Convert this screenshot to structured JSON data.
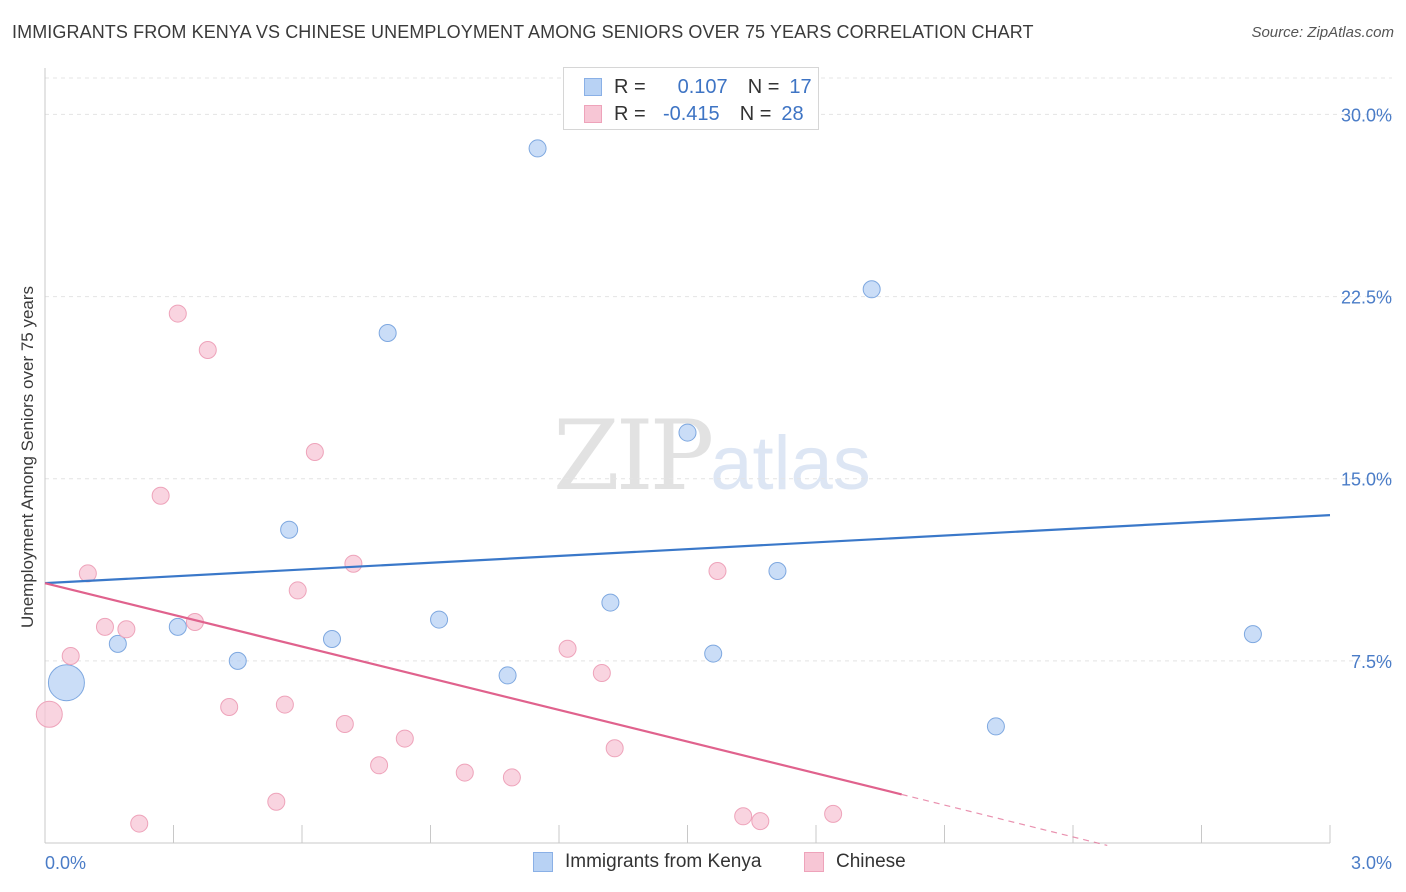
{
  "title": "IMMIGRANTS FROM KENYA VS CHINESE UNEMPLOYMENT AMONG SENIORS OVER 75 YEARS CORRELATION CHART",
  "source": "Source: ZipAtlas.com",
  "watermark": {
    "zip": "ZIP",
    "atlas": "atlas"
  },
  "legend": {
    "rows": [
      {
        "r_label": "R =",
        "r_value": "0.107",
        "n_label": "N =",
        "n_value": "17",
        "color": "#b8d2f4",
        "border": "#8ab0e6"
      },
      {
        "r_label": "R =",
        "r_value": "-0.415",
        "n_label": "N =",
        "n_value": "28",
        "color": "#f7c6d5",
        "border": "#eea3ba"
      }
    ]
  },
  "bottom_legend": [
    {
      "label": "Immigrants from Kenya",
      "color": "#b8d2f4",
      "border": "#8ab0e6"
    },
    {
      "label": "Chinese",
      "color": "#f7c6d5",
      "border": "#eea3ba"
    }
  ],
  "chart_data": {
    "type": "scatter",
    "title": "IMMIGRANTS FROM KENYA VS CHINESE UNEMPLOYMENT AMONG SENIORS OVER 75 YEARS CORRELATION CHART",
    "xlabel": "",
    "ylabel": "Unemployment Among Seniors over 75 years",
    "xlim": [
      0,
      3.0
    ],
    "ylim": [
      0,
      31.5
    ],
    "x_tick_labels": [
      "0.0%",
      "3.0%"
    ],
    "y_ticks": [
      7.5,
      15.0,
      22.5,
      30.0
    ],
    "y_tick_labels": [
      "7.5%",
      "15.0%",
      "22.5%",
      "30.0%"
    ],
    "grid": true,
    "series": [
      {
        "name": "Immigrants from Kenya",
        "color": "#b8d2f4",
        "stroke": "#7ea8e0",
        "line_color": "#3a78c9",
        "trend": {
          "x": [
            0.0,
            3.0
          ],
          "y": [
            10.7,
            13.5
          ]
        },
        "points": [
          {
            "x": 0.05,
            "y": 6.6,
            "size": "large"
          },
          {
            "x": 0.17,
            "y": 8.2
          },
          {
            "x": 0.31,
            "y": 8.9
          },
          {
            "x": 0.45,
            "y": 7.5
          },
          {
            "x": 0.57,
            "y": 12.9
          },
          {
            "x": 0.67,
            "y": 8.4
          },
          {
            "x": 0.8,
            "y": 21.0
          },
          {
            "x": 0.92,
            "y": 9.2
          },
          {
            "x": 1.08,
            "y": 6.9
          },
          {
            "x": 1.15,
            "y": 28.6
          },
          {
            "x": 1.32,
            "y": 9.9
          },
          {
            "x": 1.5,
            "y": 16.9
          },
          {
            "x": 1.56,
            "y": 7.8
          },
          {
            "x": 1.71,
            "y": 11.2
          },
          {
            "x": 1.93,
            "y": 22.8
          },
          {
            "x": 2.22,
            "y": 4.8
          },
          {
            "x": 2.82,
            "y": 8.6
          }
        ]
      },
      {
        "name": "Chinese",
        "color": "#f7c6d5",
        "stroke": "#eea3ba",
        "line_color": "#e0628d",
        "trend": {
          "x": [
            0.0,
            2.0
          ],
          "y": [
            10.7,
            2.0
          ]
        },
        "trend_dashed": {
          "x": [
            2.0,
            2.48
          ],
          "y": [
            2.0,
            -0.1
          ]
        },
        "points": [
          {
            "x": 0.01,
            "y": 5.3,
            "size": "medium"
          },
          {
            "x": 0.06,
            "y": 7.7
          },
          {
            "x": 0.1,
            "y": 11.1
          },
          {
            "x": 0.14,
            "y": 8.9
          },
          {
            "x": 0.19,
            "y": 8.8
          },
          {
            "x": 0.22,
            "y": 0.8
          },
          {
            "x": 0.27,
            "y": 14.3
          },
          {
            "x": 0.31,
            "y": 21.8
          },
          {
            "x": 0.35,
            "y": 9.1
          },
          {
            "x": 0.38,
            "y": 20.3
          },
          {
            "x": 0.43,
            "y": 5.6
          },
          {
            "x": 0.54,
            "y": 1.7
          },
          {
            "x": 0.56,
            "y": 5.7
          },
          {
            "x": 0.59,
            "y": 10.4
          },
          {
            "x": 0.63,
            "y": 16.1
          },
          {
            "x": 0.7,
            "y": 4.9
          },
          {
            "x": 0.72,
            "y": 11.5
          },
          {
            "x": 0.78,
            "y": 3.2
          },
          {
            "x": 0.84,
            "y": 4.3
          },
          {
            "x": 0.98,
            "y": 2.9
          },
          {
            "x": 1.09,
            "y": 2.7
          },
          {
            "x": 1.22,
            "y": 8.0
          },
          {
            "x": 1.3,
            "y": 7.0
          },
          {
            "x": 1.33,
            "y": 3.9
          },
          {
            "x": 1.57,
            "y": 11.2
          },
          {
            "x": 1.63,
            "y": 1.1
          },
          {
            "x": 1.67,
            "y": 0.9
          },
          {
            "x": 1.84,
            "y": 1.2
          }
        ]
      }
    ]
  }
}
